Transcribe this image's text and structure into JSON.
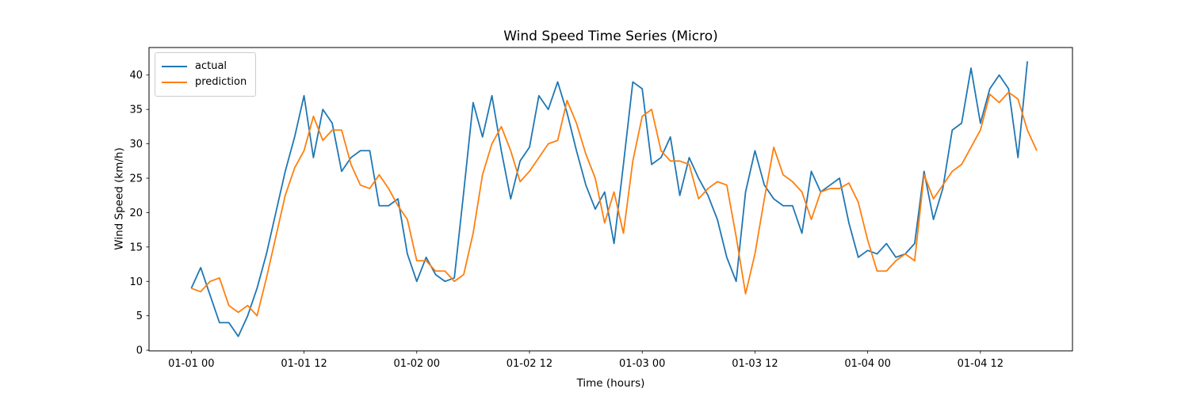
{
  "figure": {
    "background": "#ffffff",
    "text_color": "#000000"
  },
  "chart_data": {
    "type": "line",
    "title": "Wind Speed Time Series (Micro)",
    "xlabel": "Time (hours)",
    "ylabel": "Wind Speed (km/h)",
    "grid": false,
    "legend_position": "upper left",
    "x_step_hours": 1,
    "xlim_hours": [
      -4.5,
      93.8
    ],
    "ylim": [
      -0.1,
      44.0
    ],
    "xticks": {
      "hours": [
        0,
        12,
        24,
        36,
        48,
        60,
        72,
        84
      ],
      "labels": [
        "01-01 00",
        "01-01 12",
        "01-02 00",
        "01-02 12",
        "01-03 00",
        "01-03 12",
        "01-04 00",
        "01-04 12"
      ]
    },
    "yticks": [
      0,
      5,
      10,
      15,
      20,
      25,
      30,
      35,
      40
    ],
    "series": [
      {
        "name": "actual",
        "color": "#1f77b4",
        "start_hour": 0,
        "values": [
          9,
          12,
          8,
          4,
          4,
          2,
          5,
          9,
          14,
          20,
          26,
          31,
          37,
          28,
          35,
          33,
          26,
          28,
          29,
          29,
          21,
          21,
          22,
          14,
          10,
          13.5,
          11,
          10,
          10.5,
          23,
          36,
          31,
          37,
          29,
          22,
          27.5,
          29.5,
          37,
          35,
          39,
          34.5,
          29,
          24,
          20.5,
          23,
          15.5,
          27,
          39,
          38,
          27,
          28,
          31,
          22.5,
          28,
          25,
          22.5,
          19,
          13.5,
          10,
          23,
          29,
          24,
          22,
          21,
          21,
          17,
          26,
          23,
          24,
          25,
          18.5,
          13.5,
          14.5,
          14,
          15.5,
          13.5,
          14,
          15.5,
          26,
          19,
          23.5,
          32,
          33,
          41,
          33,
          38,
          40,
          38,
          28,
          42
        ]
      },
      {
        "name": "prediction",
        "color": "#ff7f0e",
        "start_hour": 0,
        "values": [
          9,
          8.5,
          10,
          10.5,
          6.5,
          5.5,
          6.5,
          5,
          10.5,
          16.5,
          22.5,
          26.5,
          29,
          34,
          30.5,
          32,
          32,
          27,
          24,
          23.5,
          25.5,
          23.5,
          21,
          19,
          13,
          13,
          11.5,
          11.5,
          10,
          11,
          17,
          25.5,
          30,
          32.5,
          29,
          24.5,
          26,
          28,
          30,
          30.5,
          36.3,
          33,
          28.5,
          25,
          18.5,
          23,
          17,
          27.5,
          34,
          35,
          29,
          27.5,
          27.5,
          27,
          22,
          23.5,
          24.5,
          24,
          16.5,
          8.2,
          14,
          22,
          29.5,
          25.5,
          24.5,
          23,
          19,
          23,
          23.5,
          23.5,
          24.3,
          21.5,
          16,
          11.5,
          11.5,
          13,
          14,
          13,
          25.5,
          22,
          24,
          26,
          27,
          29.5,
          32,
          37.2,
          36,
          37.5,
          36.5,
          32,
          29
        ]
      }
    ]
  }
}
